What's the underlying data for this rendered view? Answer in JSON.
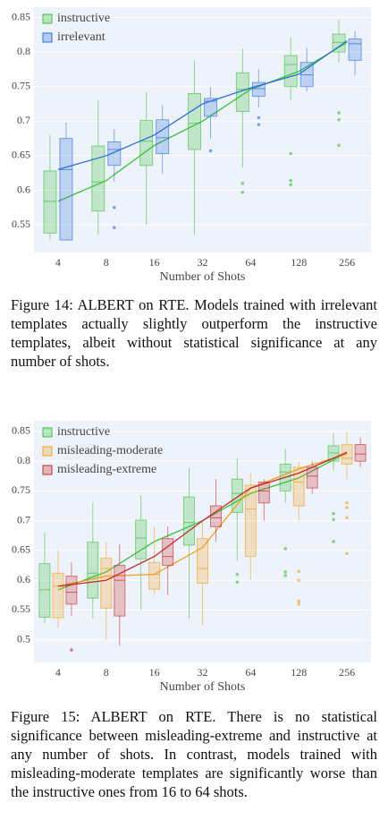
{
  "chart_data": [
    {
      "type": "box",
      "xlabel": "Number of Shots",
      "categories": [
        "4",
        "8",
        "16",
        "32",
        "64",
        "128",
        "256"
      ],
      "ylim": [
        0.51,
        0.865
      ],
      "yticks": [
        0.55,
        0.6,
        0.65,
        0.7,
        0.75,
        0.8,
        0.85
      ],
      "grid": true,
      "legend": "top-left",
      "series": [
        {
          "name": "instructive",
          "color": "#3cc03c",
          "values": [
            0.584,
            0.614,
            0.665,
            0.7,
            0.746,
            0.772,
            0.814
          ],
          "boxes": [
            {
              "min": 0.528,
              "q1": 0.538,
              "median": 0.584,
              "q3": 0.628,
              "max": 0.68,
              "outliers": []
            },
            {
              "min": 0.536,
              "q1": 0.57,
              "median": 0.612,
              "q3": 0.664,
              "max": 0.73,
              "outliers": []
            },
            {
              "min": 0.55,
              "q1": 0.636,
              "median": 0.671,
              "q3": 0.701,
              "max": 0.742,
              "outliers": []
            },
            {
              "min": 0.536,
              "q1": 0.659,
              "median": 0.697,
              "q3": 0.74,
              "max": 0.788,
              "outliers": []
            },
            {
              "min": 0.633,
              "q1": 0.714,
              "median": 0.746,
              "q3": 0.77,
              "max": 0.805,
              "outliers": [
                0.61,
                0.597
              ]
            },
            {
              "min": 0.73,
              "q1": 0.75,
              "median": 0.782,
              "q3": 0.795,
              "max": 0.821,
              "outliers": [
                0.653,
                0.614,
                0.608
              ]
            },
            {
              "min": 0.785,
              "q1": 0.8,
              "median": 0.814,
              "q3": 0.826,
              "max": 0.847,
              "outliers": [
                0.712,
                0.702,
                0.665
              ]
            }
          ]
        },
        {
          "name": "irrelevant",
          "color": "#2a6fd6",
          "values": [
            0.63,
            0.65,
            0.68,
            0.725,
            0.748,
            0.768,
            0.816
          ],
          "boxes": [
            {
              "min": 0.528,
              "q1": 0.528,
              "median": 0.63,
              "q3": 0.675,
              "max": 0.698,
              "outliers": []
            },
            {
              "min": 0.612,
              "q1": 0.636,
              "median": 0.659,
              "q3": 0.67,
              "max": 0.688,
              "outliers": [
                0.575,
                0.546
              ]
            },
            {
              "min": 0.624,
              "q1": 0.653,
              "median": 0.676,
              "q3": 0.702,
              "max": 0.723,
              "outliers": []
            },
            {
              "min": 0.675,
              "q1": 0.707,
              "median": 0.729,
              "q3": 0.733,
              "max": 0.749,
              "outliers": [
                0.657
              ]
            },
            {
              "min": 0.72,
              "q1": 0.736,
              "median": 0.747,
              "q3": 0.756,
              "max": 0.775,
              "outliers": [
                0.705,
                0.695
              ]
            },
            {
              "min": 0.743,
              "q1": 0.75,
              "median": 0.767,
              "q3": 0.785,
              "max": 0.806,
              "outliers": []
            },
            {
              "min": 0.766,
              "q1": 0.788,
              "median": 0.812,
              "q3": 0.819,
              "max": 0.83,
              "outliers": []
            }
          ]
        }
      ]
    },
    {
      "type": "box",
      "xlabel": "Number of Shots",
      "categories": [
        "4",
        "8",
        "16",
        "32",
        "64",
        "128",
        "256"
      ],
      "ylim": [
        0.462,
        0.868
      ],
      "yticks": [
        0.5,
        0.55,
        0.6,
        0.65,
        0.7,
        0.75,
        0.8,
        0.85
      ],
      "grid": true,
      "legend": "top-left",
      "series": [
        {
          "name": "instructive",
          "color": "#3cc03c",
          "values": [
            0.584,
            0.614,
            0.665,
            0.7,
            0.746,
            0.772,
            0.814
          ],
          "boxes": [
            {
              "min": 0.528,
              "q1": 0.538,
              "median": 0.584,
              "q3": 0.628,
              "max": 0.68,
              "outliers": []
            },
            {
              "min": 0.536,
              "q1": 0.57,
              "median": 0.612,
              "q3": 0.664,
              "max": 0.73,
              "outliers": []
            },
            {
              "min": 0.55,
              "q1": 0.636,
              "median": 0.671,
              "q3": 0.701,
              "max": 0.742,
              "outliers": []
            },
            {
              "min": 0.536,
              "q1": 0.659,
              "median": 0.697,
              "q3": 0.74,
              "max": 0.788,
              "outliers": []
            },
            {
              "min": 0.633,
              "q1": 0.714,
              "median": 0.746,
              "q3": 0.77,
              "max": 0.805,
              "outliers": [
                0.61,
                0.597
              ]
            },
            {
              "min": 0.73,
              "q1": 0.75,
              "median": 0.782,
              "q3": 0.795,
              "max": 0.821,
              "outliers": [
                0.653,
                0.614,
                0.608
              ]
            },
            {
              "min": 0.785,
              "q1": 0.8,
              "median": 0.814,
              "q3": 0.826,
              "max": 0.847,
              "outliers": [
                0.712,
                0.702,
                0.665
              ]
            }
          ]
        },
        {
          "name": "misleading-moderate",
          "color": "#f0a020",
          "values": [
            0.59,
            0.607,
            0.61,
            0.655,
            0.755,
            0.787,
            0.812
          ],
          "boxes": [
            {
              "min": 0.52,
              "q1": 0.537,
              "median": 0.59,
              "q3": 0.612,
              "max": 0.65,
              "outliers": []
            },
            {
              "min": 0.5,
              "q1": 0.553,
              "median": 0.62,
              "q3": 0.637,
              "max": 0.665,
              "outliers": []
            },
            {
              "min": 0.575,
              "q1": 0.585,
              "median": 0.61,
              "q3": 0.63,
              "max": 0.69,
              "outliers": []
            },
            {
              "min": 0.525,
              "q1": 0.595,
              "median": 0.62,
              "q3": 0.67,
              "max": 0.7,
              "outliers": []
            },
            {
              "min": 0.6,
              "q1": 0.64,
              "median": 0.72,
              "q3": 0.76,
              "max": 0.78,
              "outliers": []
            },
            {
              "min": 0.7,
              "q1": 0.725,
              "median": 0.765,
              "q3": 0.79,
              "max": 0.8,
              "outliers": [
                0.615,
                0.6,
                0.565,
                0.56
              ]
            },
            {
              "min": 0.77,
              "q1": 0.795,
              "median": 0.805,
              "q3": 0.828,
              "max": 0.85,
              "outliers": [
                0.73,
                0.722,
                0.705,
                0.645
              ]
            }
          ]
        },
        {
          "name": "misleading-extreme",
          "color": "#c42a2a",
          "values": [
            0.59,
            0.6,
            0.64,
            0.7,
            0.755,
            0.78,
            0.815
          ],
          "boxes": [
            {
              "min": 0.54,
              "q1": 0.56,
              "median": 0.58,
              "q3": 0.607,
              "max": 0.63,
              "outliers": [
                0.483
              ]
            },
            {
              "min": 0.49,
              "q1": 0.54,
              "median": 0.6,
              "q3": 0.625,
              "max": 0.66,
              "outliers": []
            },
            {
              "min": 0.575,
              "q1": 0.625,
              "median": 0.64,
              "q3": 0.67,
              "max": 0.69,
              "outliers": []
            },
            {
              "min": 0.665,
              "q1": 0.69,
              "median": 0.705,
              "q3": 0.725,
              "max": 0.77,
              "outliers": []
            },
            {
              "min": 0.7,
              "q1": 0.73,
              "median": 0.75,
              "q3": 0.765,
              "max": 0.77,
              "outliers": []
            },
            {
              "min": 0.745,
              "q1": 0.755,
              "median": 0.775,
              "q3": 0.79,
              "max": 0.8,
              "outliers": []
            },
            {
              "min": 0.79,
              "q1": 0.8,
              "median": 0.812,
              "q3": 0.828,
              "max": 0.84,
              "outliers": []
            }
          ]
        }
      ]
    }
  ],
  "captions": [
    "Figure 14: ALBERT on RTE. Models trained with irrelevant templates actually slightly outperform the instructive templates, albeit without statistical significance at any number of shots.",
    "Figure 15: ALBERT on RTE. There is no statistical significance between misleading-extreme and instructive at any number of shots. In contrast, models trained with misleading-moderate templates are significantly worse than the instructive ones from 16 to 64 shots."
  ]
}
